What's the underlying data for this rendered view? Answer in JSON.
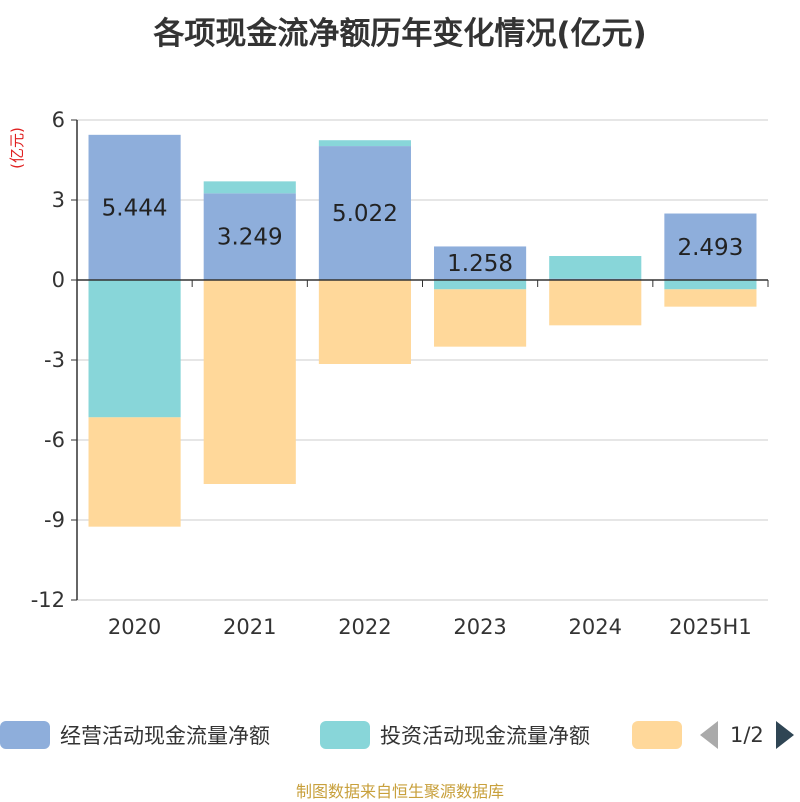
{
  "chart_data": {
    "type": "bar",
    "stacked": true,
    "title": "各项现金流净额历年变化情况(亿元)",
    "ylabel": "(亿元)",
    "ylim": [
      -12,
      6
    ],
    "yticks": [
      6,
      3,
      0,
      -3,
      -6,
      -9,
      -12
    ],
    "categories": [
      "2020",
      "2021",
      "2022",
      "2023",
      "2024",
      "2025H1"
    ],
    "grid": true,
    "legend_position": "bottom",
    "series": [
      {
        "name": "经营活动现金流量净额",
        "color": "#8eaedb",
        "values": [
          5.444,
          3.249,
          5.022,
          1.258,
          0.05,
          2.493
        ],
        "labels": [
          "5.444",
          "3.249",
          "5.022",
          "1.258",
          "",
          "2.493"
        ]
      },
      {
        "name": "投资活动现金流量净额",
        "color": "#88d6d9",
        "values": [
          -5.15,
          0.45,
          0.22,
          -0.35,
          0.85,
          -0.35
        ],
        "labels": [
          "",
          "",
          "",
          "",
          "",
          ""
        ]
      },
      {
        "name": "",
        "color": "#ffd89a",
        "values": [
          -4.1,
          -7.65,
          -3.15,
          -2.15,
          -1.7,
          -0.65
        ],
        "labels": [
          "",
          "",
          "",
          "",
          "",
          ""
        ]
      }
    ]
  },
  "legend": {
    "items": [
      {
        "label": "经营活动现金流量净额",
        "color": "#8eaedb"
      },
      {
        "label": "投资活动现金流量净额",
        "color": "#88d6d9"
      },
      {
        "label": "",
        "color": "#ffd89a"
      }
    ],
    "page_indicator": "1/2"
  },
  "source_note": "制图数据来自恒生聚源数据库"
}
